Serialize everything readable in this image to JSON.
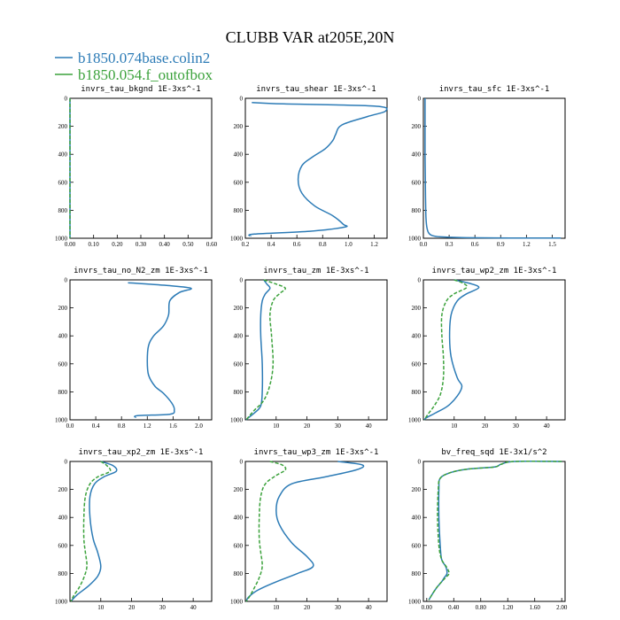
{
  "title": "CLUBB VAR at205E,20N",
  "colors": {
    "series1": "#2c7bb6",
    "series2": "#3ca23c",
    "axis": "#000000"
  },
  "legend": [
    {
      "name": "b1850.074base.colin2",
      "color": "#2c7bb6"
    },
    {
      "name": "b1850.054.f_outofbox",
      "color": "#3ca23c"
    }
  ],
  "chart_data": [
    {
      "type": "line",
      "title": "invrs_tau_bkgnd   1E-3xs^-1",
      "xlim": [
        0,
        0.6
      ],
      "ylim": [
        1000,
        0
      ],
      "xticks": [
        "0.00",
        "0.10",
        "0.20",
        "0.30",
        "0.40",
        "0.50",
        "0.60"
      ],
      "xtick_values": [
        0,
        0.1,
        0.2,
        0.3,
        0.4,
        0.5,
        0.6
      ],
      "yticks": [
        "0",
        "200",
        "400",
        "600",
        "800",
        "1000"
      ],
      "ytick_values": [
        0,
        200,
        400,
        600,
        800,
        1000
      ],
      "series": [
        {
          "color": "series1",
          "x": [
            0.0,
            0.0,
            0.0,
            0.0,
            0.0,
            0.0,
            0.0
          ],
          "y": [
            0,
            100,
            300,
            500,
            700,
            900,
            1000
          ]
        },
        {
          "color": "series2",
          "x": [
            0.0,
            0.0,
            0.0,
            0.0,
            0.0,
            0.0,
            0.0
          ],
          "y": [
            0,
            100,
            300,
            500,
            700,
            900,
            1000
          ]
        }
      ]
    },
    {
      "type": "line",
      "title": "invrs_tau_shear   1E-3xs^-1",
      "xlim": [
        0.2,
        1.3
      ],
      "ylim": [
        1000,
        0
      ],
      "xticks": [
        "0.2",
        "0.4",
        "0.6",
        "0.8",
        "1.0",
        "1.2"
      ],
      "xtick_values": [
        0.2,
        0.4,
        0.6,
        0.8,
        1.0,
        1.2
      ],
      "yticks": [
        "0",
        "200",
        "400",
        "600",
        "800",
        "1000"
      ],
      "ytick_values": [
        0,
        200,
        400,
        600,
        800,
        1000
      ],
      "series": [
        {
          "color": "series1",
          "x": [
            0.25,
            0.5,
            1.2,
            1.29,
            1.15,
            0.95,
            0.9,
            0.88,
            0.82,
            0.72,
            0.64,
            0.61,
            0.64,
            0.74,
            0.88,
            0.96,
            0.97,
            0.7,
            0.27,
            0.24
          ],
          "y": [
            30,
            40,
            55,
            90,
            130,
            190,
            260,
            300,
            360,
            420,
            480,
            580,
            680,
            770,
            840,
            900,
            920,
            950,
            970,
            985
          ]
        }
      ]
    },
    {
      "type": "line",
      "title": "invrs_tau_sfc   1E-3xs^-1",
      "xlim": [
        0,
        1.65
      ],
      "ylim": [
        1000,
        0
      ],
      "xticks": [
        "0.0",
        "0.3",
        "0.6",
        "0.9",
        "1.2",
        "1.5"
      ],
      "xtick_values": [
        0,
        0.3,
        0.6,
        0.9,
        1.2,
        1.5
      ],
      "yticks": [
        "0",
        "200",
        "400",
        "600",
        "800",
        "1000"
      ],
      "ytick_values": [
        0,
        200,
        400,
        600,
        800,
        1000
      ],
      "series": [
        {
          "color": "series1",
          "x": [
            0.02,
            0.02,
            0.025,
            0.03,
            0.04,
            0.06,
            0.1,
            0.2,
            0.5,
            1.0,
            1.6
          ],
          "y": [
            0,
            400,
            700,
            850,
            920,
            960,
            980,
            990,
            996,
            998,
            999
          ]
        }
      ]
    },
    {
      "type": "line",
      "title": "invrs_tau_no_N2_zm   1E-3xs^-1",
      "xlim": [
        0,
        2.2
      ],
      "ylim": [
        1000,
        0
      ],
      "xticks": [
        "0.0",
        "0.4",
        "0.8",
        "1.2",
        "1.6",
        "2.0"
      ],
      "xtick_values": [
        0,
        0.4,
        0.8,
        1.2,
        1.6,
        2.0
      ],
      "yticks": [
        "0",
        "200",
        "400",
        "600",
        "800",
        "1000"
      ],
      "ytick_values": [
        0,
        200,
        400,
        600,
        800,
        1000
      ],
      "series": [
        {
          "color": "series1",
          "x": [
            0.9,
            1.5,
            1.88,
            1.7,
            1.55,
            1.53,
            1.45,
            1.3,
            1.22,
            1.2,
            1.22,
            1.32,
            1.45,
            1.58,
            1.62,
            1.55,
            1.05,
            1.02
          ],
          "y": [
            20,
            40,
            60,
            90,
            150,
            250,
            330,
            400,
            470,
            580,
            680,
            760,
            810,
            880,
            930,
            960,
            970,
            985
          ]
        }
      ]
    },
    {
      "type": "line",
      "title": "invrs_tau_zm   1E-3xs^-1",
      "xlim": [
        0,
        46
      ],
      "ylim": [
        1000,
        0
      ],
      "xticks": [
        "10",
        "20",
        "30",
        "40"
      ],
      "xtick_values": [
        10,
        20,
        30,
        40
      ],
      "yticks": [
        "0",
        "200",
        "400",
        "600",
        "800",
        "1000"
      ],
      "ytick_values": [
        0,
        200,
        400,
        600,
        800,
        1000
      ],
      "series": [
        {
          "color": "series1",
          "x": [
            6,
            7,
            8,
            6.5,
            5.5,
            5,
            5,
            5.5,
            5.5,
            5,
            3,
            1,
            0.3
          ],
          "y": [
            0,
            30,
            60,
            100,
            150,
            250,
            400,
            600,
            800,
            900,
            950,
            985,
            1000
          ]
        },
        {
          "color": "series2",
          "x": [
            6,
            10,
            13,
            11,
            9,
            8,
            8.5,
            9,
            8,
            6,
            3,
            1,
            0.3
          ],
          "y": [
            0,
            30,
            60,
            100,
            150,
            250,
            400,
            600,
            750,
            860,
            930,
            980,
            1000
          ]
        }
      ]
    },
    {
      "type": "line",
      "title": "invrs_tau_wp2_zm   1E-3xs^-1",
      "xlim": [
        0,
        46
      ],
      "ylim": [
        1000,
        0
      ],
      "xticks": [
        "10",
        "20",
        "30",
        "40"
      ],
      "xtick_values": [
        10,
        20,
        30,
        40
      ],
      "yticks": [
        "0",
        "200",
        "400",
        "600",
        "800",
        "1000"
      ],
      "ytick_values": [
        0,
        200,
        400,
        600,
        800,
        1000
      ],
      "series": [
        {
          "color": "series1",
          "x": [
            10,
            15,
            18,
            14,
            11,
            9,
            8.5,
            9,
            11,
            12.5,
            11,
            8,
            4,
            1,
            0.3
          ],
          "y": [
            0,
            25,
            55,
            100,
            150,
            250,
            400,
            550,
            700,
            760,
            830,
            900,
            950,
            985,
            1000
          ]
        },
        {
          "color": "series2",
          "x": [
            10,
            13,
            14,
            10,
            7.5,
            6,
            6,
            6.5,
            6.5,
            5.5,
            3.5,
            1.5,
            0.3
          ],
          "y": [
            0,
            25,
            55,
            100,
            150,
            250,
            400,
            550,
            700,
            820,
            900,
            960,
            1000
          ]
        }
      ]
    },
    {
      "type": "line",
      "title": "invrs_tau_xp2_zm   1E-3xs^-1",
      "xlim": [
        0,
        46
      ],
      "ylim": [
        1000,
        0
      ],
      "xticks": [
        "10",
        "20",
        "30",
        "40"
      ],
      "xtick_values": [
        10,
        20,
        30,
        40
      ],
      "yticks": [
        "0",
        "200",
        "400",
        "600",
        "800",
        "1000"
      ],
      "ytick_values": [
        0,
        200,
        400,
        600,
        800,
        1000
      ],
      "series": [
        {
          "color": "series1",
          "x": [
            10,
            14,
            15,
            11,
            8,
            6.5,
            6.5,
            7.5,
            9,
            10,
            9,
            6,
            2.5,
            0.5
          ],
          "y": [
            0,
            30,
            70,
            110,
            160,
            250,
            400,
            550,
            650,
            750,
            820,
            890,
            950,
            995
          ]
        },
        {
          "color": "series2",
          "x": [
            10,
            12,
            13,
            9,
            6.5,
            5,
            4.5,
            4.5,
            5,
            5.5,
            4.5,
            3,
            1.2,
            0.3
          ],
          "y": [
            0,
            30,
            70,
            110,
            160,
            250,
            400,
            550,
            650,
            750,
            830,
            900,
            960,
            1000
          ]
        }
      ]
    },
    {
      "type": "line",
      "title": "invrs_tau_wp3_zm   1E-3xs^-1",
      "xlim": [
        0,
        46
      ],
      "ylim": [
        1000,
        0
      ],
      "xticks": [
        "10",
        "20",
        "30",
        "40"
      ],
      "xtick_values": [
        10,
        20,
        30,
        40
      ],
      "yticks": [
        "0",
        "200",
        "400",
        "600",
        "800",
        "1000"
      ],
      "ytick_values": [
        0,
        200,
        400,
        600,
        800,
        1000
      ],
      "series": [
        {
          "color": "series1",
          "x": [
            30,
            38,
            36,
            26,
            15,
            11,
            10,
            11,
            15,
            20,
            22,
            17,
            10,
            4,
            1,
            0.3
          ],
          "y": [
            0,
            25,
            60,
            110,
            160,
            250,
            350,
            450,
            580,
            680,
            750,
            800,
            860,
            920,
            970,
            1000
          ]
        },
        {
          "color": "series2",
          "x": [
            8,
            12,
            13,
            10,
            6.5,
            5,
            4.5,
            4.5,
            5,
            5.5,
            4.5,
            3,
            1.5,
            0.3
          ],
          "y": [
            0,
            25,
            60,
            100,
            160,
            250,
            400,
            550,
            650,
            750,
            830,
            900,
            960,
            1000
          ]
        }
      ]
    },
    {
      "type": "line",
      "title": "bv_freq_sqd   1E-3x1/s^2",
      "xlim": [
        -0.05,
        2.05
      ],
      "ylim": [
        1000,
        0
      ],
      "xticks": [
        "0.00",
        "0.40",
        "0.80",
        "1.20",
        "1.60",
        "2.00"
      ],
      "xtick_values": [
        0,
        0.4,
        0.8,
        1.2,
        1.6,
        2.0
      ],
      "yticks": [
        "0",
        "200",
        "400",
        "600",
        "800",
        "1000"
      ],
      "ytick_values": [
        0,
        200,
        400,
        600,
        800,
        1000
      ],
      "series": [
        {
          "color": "series1",
          "x": [
            2.0,
            1.3,
            1.1,
            1.0,
            0.6,
            0.35,
            0.2,
            0.18,
            0.18,
            0.2,
            0.22,
            0.28,
            0.3,
            0.26,
            0.22,
            0.15,
            0.08,
            0.03
          ],
          "y": [
            0,
            0,
            20,
            40,
            55,
            80,
            120,
            200,
            400,
            600,
            700,
            750,
            800,
            830,
            860,
            900,
            950,
            990
          ]
        },
        {
          "color": "series2",
          "x": [
            2.0,
            1.3,
            1.1,
            1.0,
            0.6,
            0.35,
            0.2,
            0.17,
            0.16,
            0.18,
            0.22,
            0.3,
            0.33,
            0.28,
            0.22,
            0.15,
            0.08,
            0.03
          ],
          "y": [
            0,
            0,
            20,
            40,
            55,
            80,
            120,
            200,
            400,
            600,
            700,
            760,
            800,
            830,
            860,
            900,
            950,
            990
          ]
        }
      ]
    }
  ]
}
